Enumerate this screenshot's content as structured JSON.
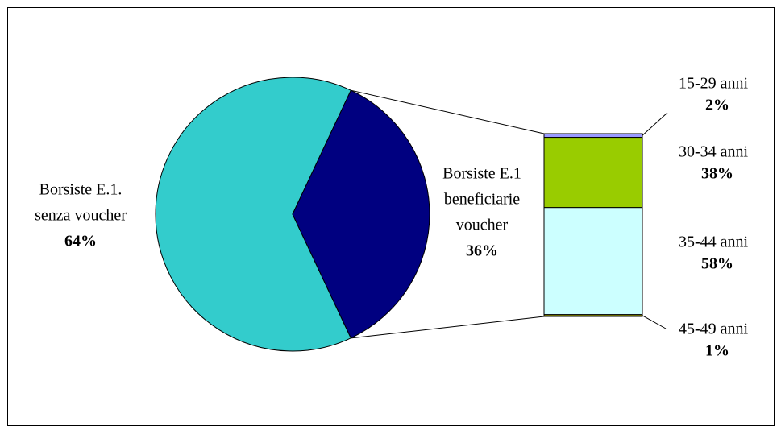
{
  "chart_data": {
    "type": "bar-of-pie",
    "pie": {
      "labels": [
        [
          "Borsiste E.1.",
          "senza voucher"
        ],
        [
          "Borsiste E.1",
          "beneficiarie",
          "voucher"
        ]
      ],
      "values": [
        64,
        36
      ],
      "value_labels": [
        "64%",
        "36%"
      ],
      "colors": [
        "#33cccc",
        "#000080"
      ]
    },
    "bar": {
      "categories": [
        "15-29 anni",
        "30-34 anni",
        "35-44 anni",
        "45-49 anni"
      ],
      "values": [
        2,
        38,
        58,
        1
      ],
      "value_labels": [
        "2%",
        "38%",
        "58%",
        "1%"
      ],
      "colors": [
        "#9999ff",
        "#99cc00",
        "#ccffff",
        "#808000"
      ]
    }
  }
}
